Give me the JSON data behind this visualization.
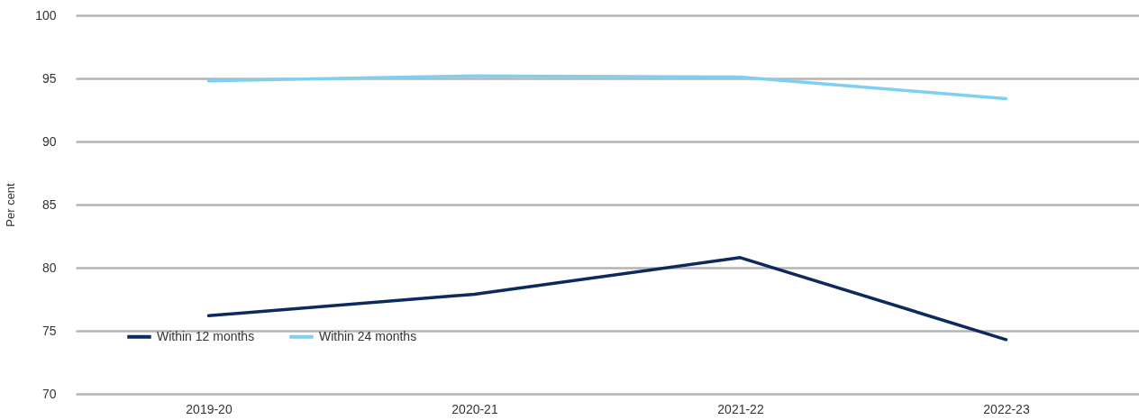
{
  "chart_data": {
    "type": "line",
    "ylabel": "Per cent",
    "categories": [
      "2019-20",
      "2020-21",
      "2021-22",
      "2022-23"
    ],
    "series": [
      {
        "name": "Within 12 months",
        "color": "#0d2a5c",
        "values": [
          76.2,
          77.9,
          80.8,
          74.3
        ]
      },
      {
        "name": "Within 24 months",
        "color": "#7fd0f0",
        "values": [
          94.8,
          95.2,
          95.1,
          93.4
        ]
      }
    ],
    "ylim": [
      70,
      100
    ],
    "yticks": [
      70,
      75,
      80,
      85,
      90,
      95,
      100
    ],
    "grid": "y",
    "legend": "bottom left",
    "marker": "none",
    "line_style": "solid"
  }
}
